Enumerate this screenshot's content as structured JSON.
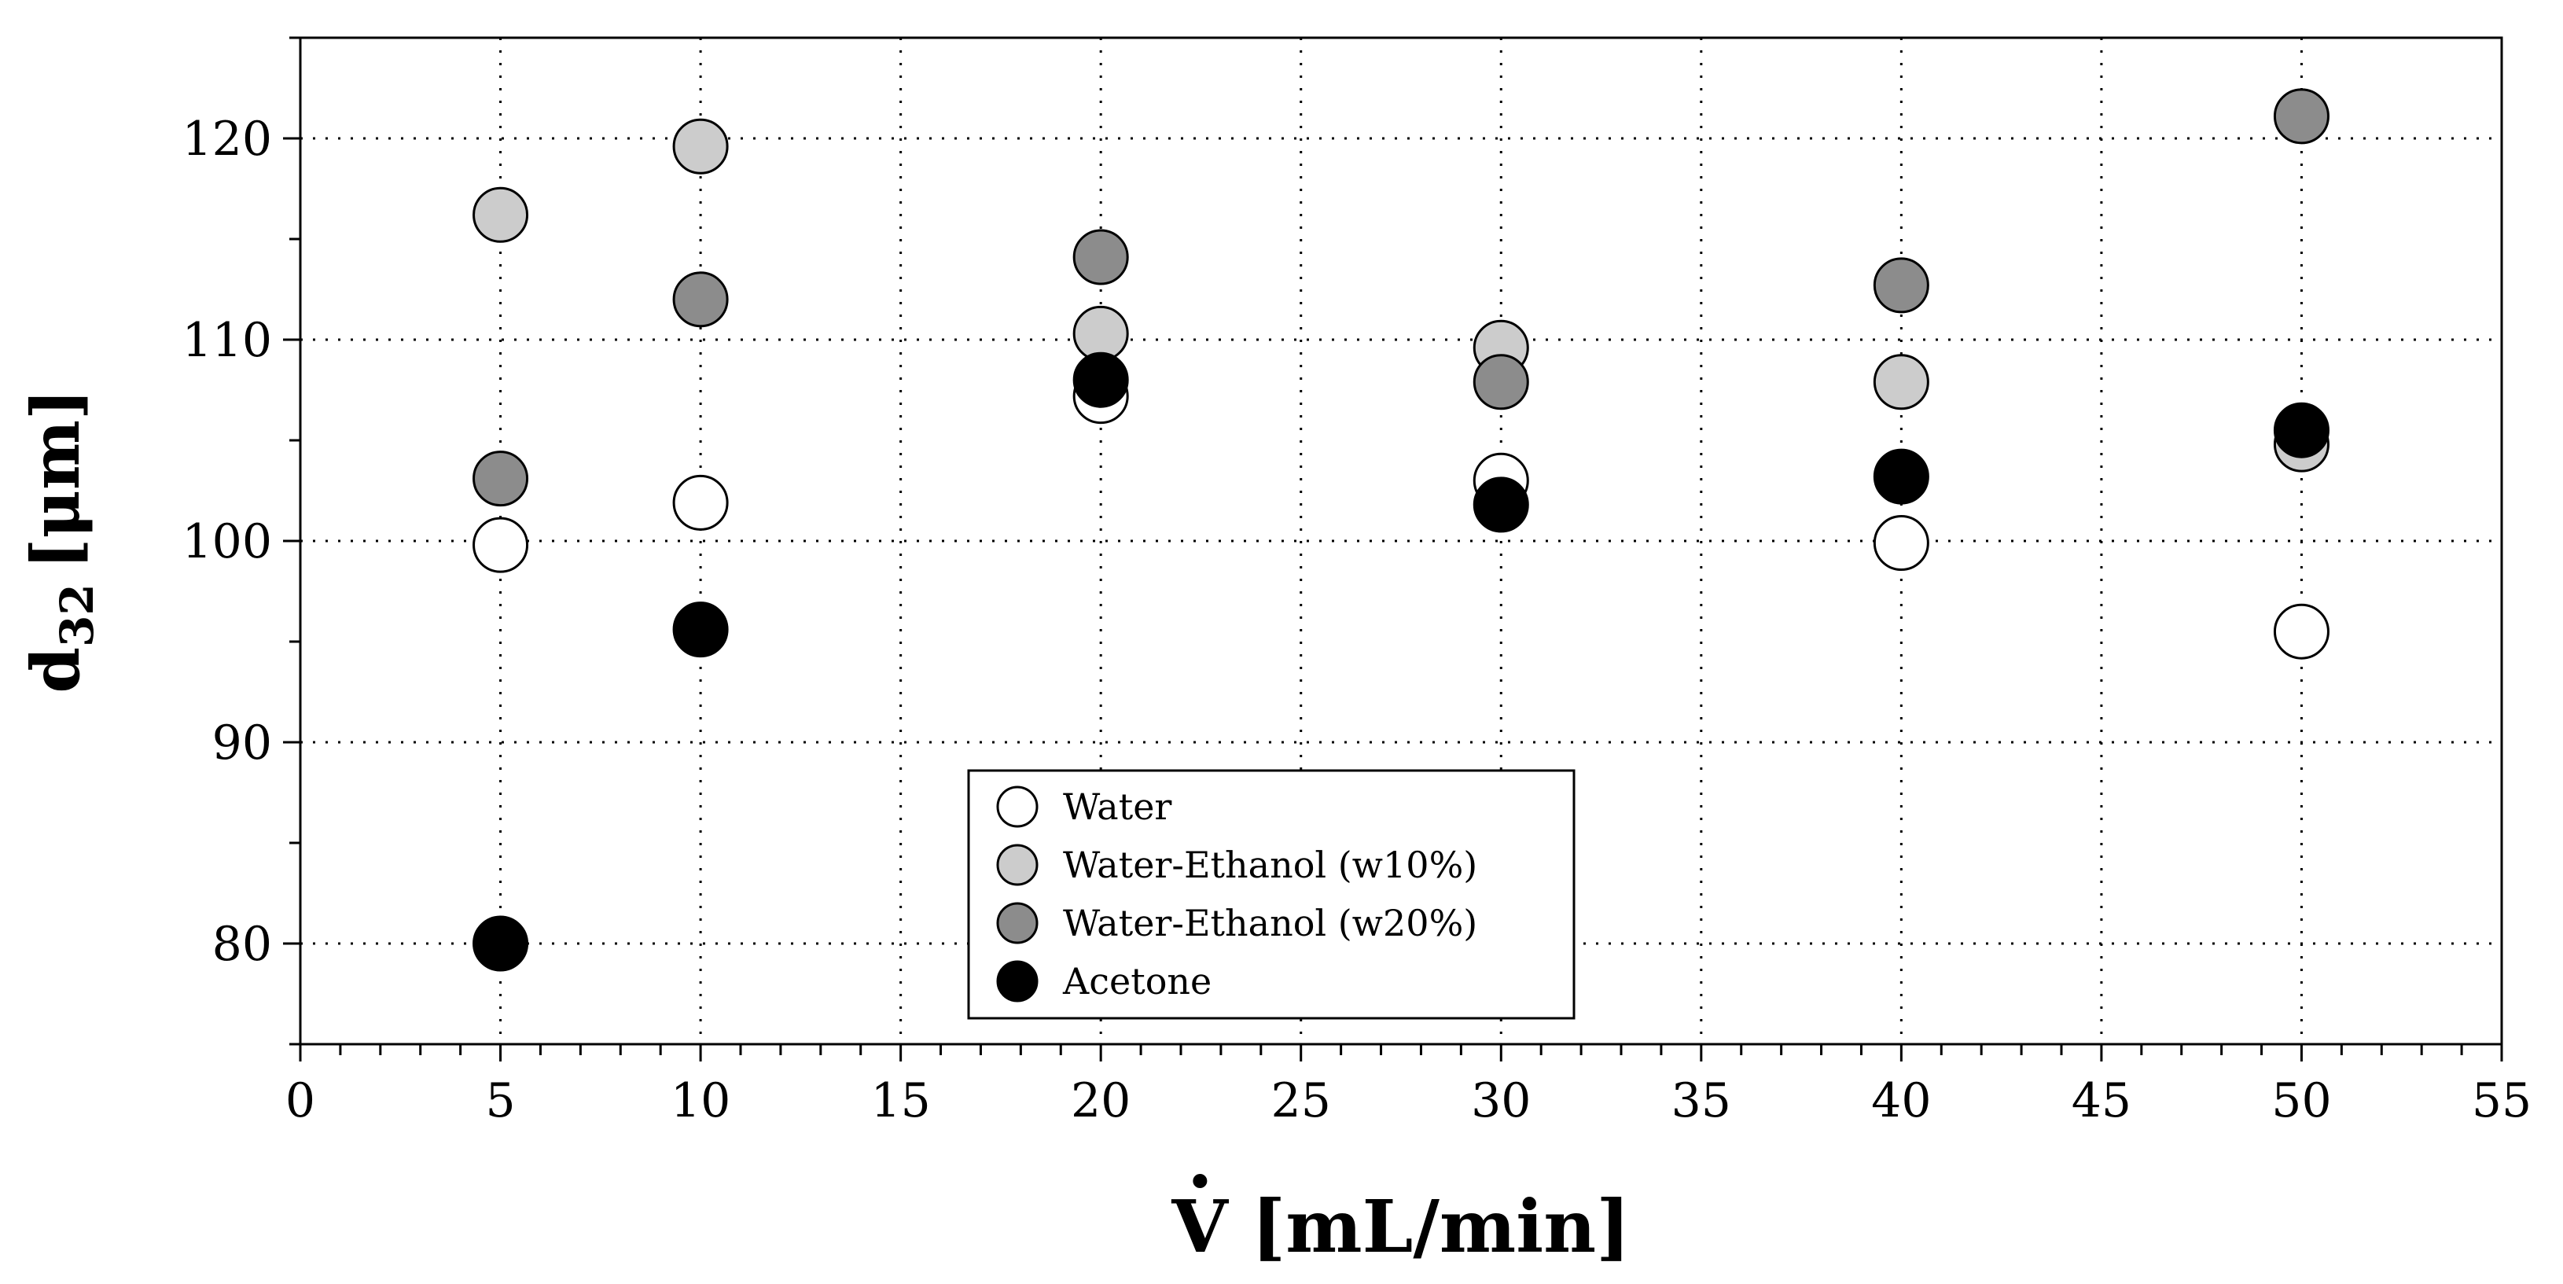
{
  "chart_data": {
    "type": "scatter",
    "title": "",
    "xlabel": "V [mL/min]",
    "xlabel_symbol": "V",
    "xlabel_units": "[mL/min]",
    "ylabel_main": "d",
    "ylabel_subscript": "32",
    "ylabel_units": "[μm]",
    "xlim": [
      0,
      55
    ],
    "ylim": [
      75,
      125
    ],
    "x_ticks": [
      0,
      5,
      10,
      15,
      20,
      25,
      30,
      35,
      40,
      45,
      50,
      55
    ],
    "x_tick_labels": [
      "0",
      "5",
      "10",
      "15",
      "20",
      "25",
      "30",
      "35",
      "40",
      "45",
      "50",
      "55"
    ],
    "y_ticks": [
      80,
      90,
      100,
      110,
      120
    ],
    "y_tick_labels": [
      "80",
      "90",
      "100",
      "110",
      "120"
    ],
    "grid": "dotted",
    "legend_position": "bottom-center",
    "series": [
      {
        "name": "Water",
        "color": "#ffffff",
        "x": [
          5,
          10,
          20,
          30,
          40,
          50
        ],
        "y": [
          99.8,
          101.9,
          107.2,
          103.0,
          99.9,
          95.5
        ]
      },
      {
        "name": "Water-Ethanol (w10%)",
        "color": "#cccccc",
        "x": [
          5,
          10,
          20,
          30,
          40,
          50
        ],
        "y": [
          116.2,
          119.6,
          110.3,
          109.6,
          107.9,
          104.8
        ]
      },
      {
        "name": "Water-Ethanol (w20%)",
        "color": "#8c8c8c",
        "x": [
          5,
          10,
          20,
          30,
          40,
          50
        ],
        "y": [
          103.1,
          112.0,
          114.1,
          107.9,
          112.7,
          121.1
        ]
      },
      {
        "name": "Acetone",
        "color": "#000000",
        "x": [
          5,
          10,
          20,
          30,
          40,
          50
        ],
        "y": [
          80.0,
          95.6,
          108.0,
          101.8,
          103.2,
          105.5
        ]
      }
    ]
  }
}
